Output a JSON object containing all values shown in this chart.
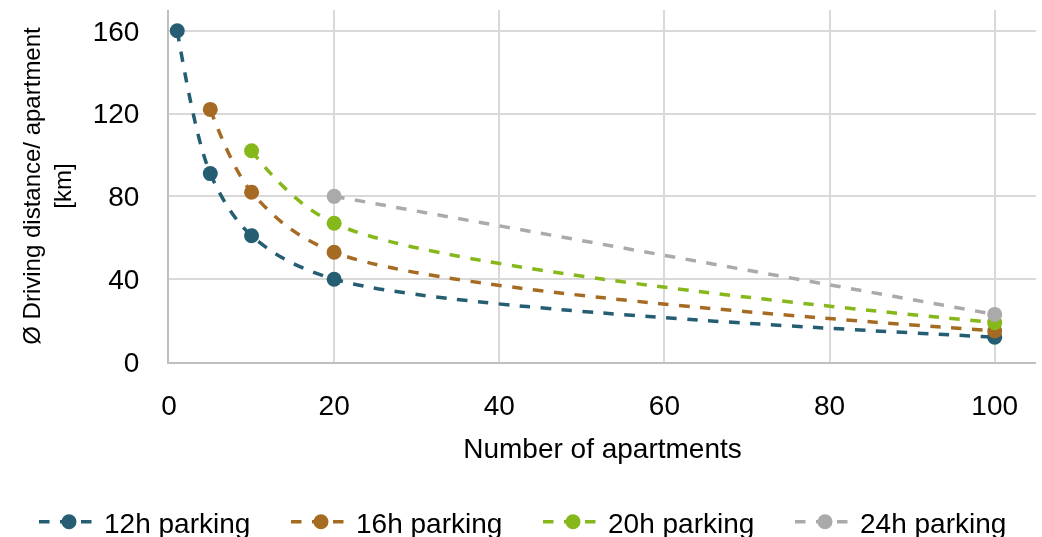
{
  "chart_data": {
    "type": "line",
    "xlabel": "Number of apartments",
    "ylabel": "Ø Driving distance/ apartment\n[km]",
    "xlim": [
      0,
      105
    ],
    "xticks": [
      0,
      20,
      40,
      60,
      80,
      100
    ],
    "ylim": [
      0,
      170
    ],
    "yticks": [
      0,
      40,
      80,
      120,
      160
    ],
    "grid": true,
    "legend": "bottom",
    "marker": "circle",
    "line_style": "dashed",
    "series": [
      {
        "name": "12h parking",
        "color": "#255e73",
        "x": [
          1,
          5,
          10,
          20,
          100
        ],
        "values": [
          160,
          91,
          61,
          40,
          12
        ]
      },
      {
        "name": "16h parking",
        "color": "#a66b23",
        "x": [
          5,
          10,
          20,
          100
        ],
        "values": [
          122,
          82,
          53,
          15
        ]
      },
      {
        "name": "20h parking",
        "color": "#86b81b",
        "x": [
          10,
          20,
          100
        ],
        "values": [
          102,
          67,
          19
        ]
      },
      {
        "name": "24h parking",
        "color": "#aaaaaa",
        "x": [
          20,
          100
        ],
        "values": [
          80,
          23
        ]
      }
    ]
  }
}
